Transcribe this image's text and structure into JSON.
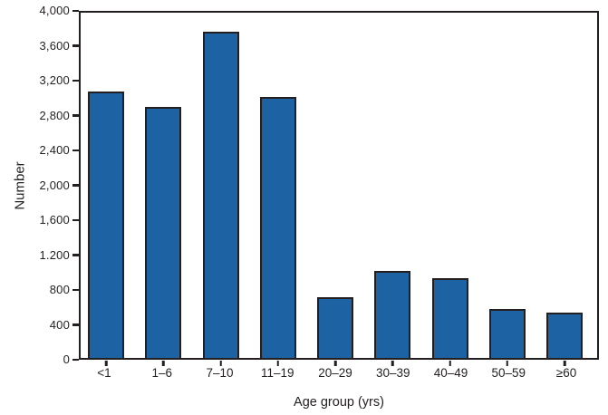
{
  "chart_data": {
    "type": "bar",
    "title": "",
    "xlabel": "Age group (yrs)",
    "ylabel": "Number",
    "categories": [
      "<1",
      "1–6",
      "7–10",
      "11–19",
      "20–29",
      "30–39",
      "40–49",
      "50–59",
      "≥60"
    ],
    "values": [
      3090,
      2910,
      3780,
      3020,
      700,
      1010,
      920,
      570,
      520
    ],
    "ylim": [
      0,
      4000
    ],
    "ytick_interval": 400,
    "ytick_labels_bottom_to_top": [
      "0",
      "400",
      "800",
      "1.200",
      "1,600",
      "2,000",
      "2,400",
      "2,800",
      "3,200",
      "3,600",
      "4,000"
    ],
    "grid": false,
    "legend": "none",
    "bar_color": "#1d63a4",
    "outline_color": "#231f20",
    "background_color": "#ffffff"
  }
}
